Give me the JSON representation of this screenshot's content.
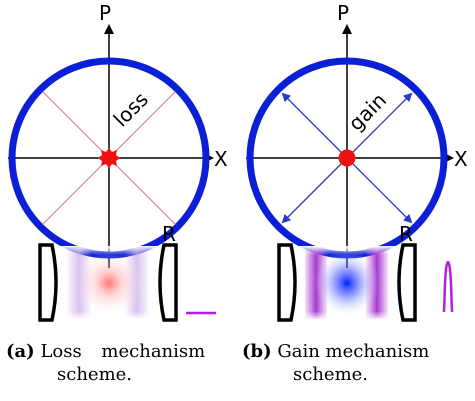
{
  "panel_a": {
    "x_axis_label": "X",
    "p_axis_label": "P",
    "mechanism_label": "loss",
    "mirror_label": "R",
    "caption_tag": "(a)",
    "caption_text": "Loss mechanism",
    "caption_text_line2": "scheme."
  },
  "panel_b": {
    "x_axis_label": "X",
    "p_axis_label": "P",
    "mechanism_label": "gain",
    "mirror_label": "R",
    "caption_tag": "(b)",
    "caption_text": "Gain mechanism",
    "caption_text_line2": "scheme."
  },
  "colors": {
    "circle": "#0a1fd6",
    "state_dot": "#ee1111",
    "loss_rays": "#d04060",
    "gain_arrows": "#2a3ac8",
    "output_trace": "#b020e0",
    "mirror": "#000000"
  }
}
